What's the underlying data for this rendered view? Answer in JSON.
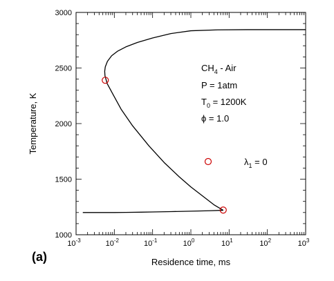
{
  "chart_data": {
    "type": "line",
    "panel_label": "(a)",
    "xlabel": "Residence time, ms",
    "ylabel": "Temperature, K",
    "xscale": "log",
    "xlim": [
      0.001,
      1000
    ],
    "ylim": [
      1000,
      3000
    ],
    "x_ticks": [
      {
        "value": 0.001,
        "base": "10",
        "exp": "-3"
      },
      {
        "value": 0.01,
        "base": "10",
        "exp": "-2"
      },
      {
        "value": 0.1,
        "base": "10",
        "exp": "-1"
      },
      {
        "value": 1,
        "base": "10",
        "exp": "0"
      },
      {
        "value": 10,
        "base": "10",
        "exp": "1"
      },
      {
        "value": 100,
        "base": "10",
        "exp": "2"
      },
      {
        "value": 1000,
        "base": "10",
        "exp": "3"
      }
    ],
    "y_ticks": [
      {
        "value": 1000,
        "label": "1000"
      },
      {
        "value": 1500,
        "label": "1500"
      },
      {
        "value": 2000,
        "label": "2000"
      },
      {
        "value": 2500,
        "label": "2500"
      },
      {
        "value": 3000,
        "label": "3000"
      }
    ],
    "series": [
      {
        "color": "#000000",
        "x": [
          0.0015,
          0.003,
          0.005,
          0.007,
          0.01,
          0.02,
          0.05,
          0.1,
          0.3,
          1,
          3,
          7
        ],
        "y": [
          1200,
          1200,
          1200,
          1200,
          1200,
          1201,
          1203,
          1205,
          1208,
          1212,
          1216,
          1220
        ]
      },
      {
        "color": "#000000",
        "x": [
          7,
          4,
          2,
          1,
          0.5,
          0.2,
          0.08,
          0.03,
          0.015,
          0.009,
          0.0065,
          0.0057,
          0.0056,
          0.0058,
          0.0066,
          0.0085,
          0.012,
          0.02,
          0.04,
          0.1,
          0.3,
          1,
          5,
          30,
          200,
          1000
        ],
        "y": [
          1220,
          1270,
          1350,
          1430,
          1520,
          1650,
          1800,
          1980,
          2130,
          2270,
          2360,
          2430,
          2470,
          2510,
          2560,
          2610,
          2650,
          2690,
          2730,
          2770,
          2810,
          2835,
          2843,
          2845,
          2845,
          2845
        ]
      }
    ],
    "markers": [
      {
        "x": 0.0058,
        "y": 2390,
        "color": "#cc0000"
      },
      {
        "x": 7,
        "y": 1222,
        "color": "#cc0000"
      }
    ],
    "annotations": [
      {
        "parts": [
          {
            "t": "CH"
          },
          {
            "t": "4",
            "sub": true
          },
          {
            "t": " - Air"
          }
        ]
      },
      {
        "parts": [
          {
            "t": "P = 1atm"
          }
        ]
      },
      {
        "parts": [
          {
            "t": "T"
          },
          {
            "t": "0",
            "sub": true
          },
          {
            "t": " = 1200K"
          }
        ]
      },
      {
        "parts": [
          {
            "t": "ϕ = 1.0"
          }
        ]
      }
    ],
    "legend": {
      "marker_color": "#cc0000",
      "parts": [
        {
          "t": "λ"
        },
        {
          "t": "1",
          "sub": true
        },
        {
          "t": " = 0"
        }
      ]
    }
  }
}
